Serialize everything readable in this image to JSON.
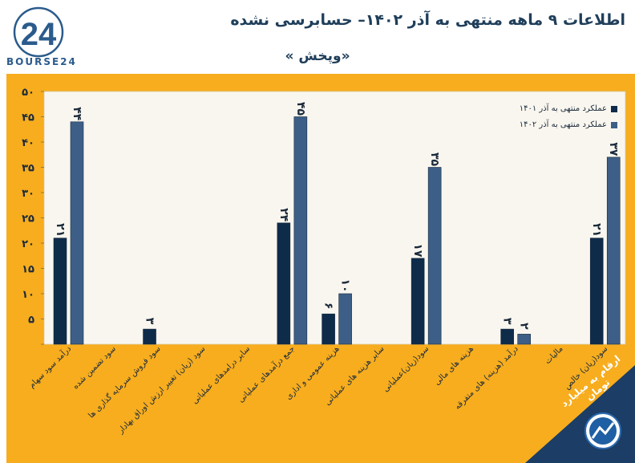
{
  "brand": {
    "logo_text": "BOURSE24",
    "logo_mark": "24"
  },
  "header": {
    "title": "اطلاعات ۹  ماهه منتهی به آذر ۱۴۰۲– حسابرسی نشده",
    "subtitle": "«وپخش »"
  },
  "footer": {
    "unit_label": "ارقام به میلیارد تومان"
  },
  "colors": {
    "panel": "#f7ad1e",
    "plot": "#f9f6ef",
    "series_1401": "#0f2b4a",
    "series_1402": "#3d5f87",
    "text": "#1b2a3a",
    "corner": "#1b3d66"
  },
  "chart_data": {
    "type": "bar",
    "title": "اطلاعات ۹ ماهه منتهی به آذر ۱۴۰۲– حسابرسی نشده",
    "categories": [
      "درآمد سود سهام",
      "سود تضمین شده",
      "سود فروش سرمایه گذاری ها",
      "سود (زیان) تغییر ارزش اوراق بهادار",
      "سایر درامدهای عملیاتی",
      "جمع درآمدهای عملیاتی",
      "هزینه عمومی و اداری",
      "سایر هزینه های عملیاتی",
      "سود(زیان)عملیاتی",
      "هزینه های مالی",
      "درآمد (هزینه) های متفرقه",
      "مالیات",
      "سود(زیان) خالص"
    ],
    "series": [
      {
        "name": "عملکرد منتهی به آذر ۱۴۰۱",
        "values": [
          21,
          null,
          3,
          null,
          null,
          24,
          6,
          null,
          17,
          null,
          3,
          null,
          21
        ],
        "labels": [
          "۲۱",
          "",
          "۳",
          "",
          "",
          "۲۴",
          "۶",
          "",
          "۱۷",
          "",
          "۳",
          "",
          "۲۱"
        ]
      },
      {
        "name": "عملکرد منتهی به آذر ۱۴۰۲",
        "values": [
          44,
          null,
          null,
          null,
          null,
          45,
          10,
          null,
          35,
          null,
          2,
          null,
          37
        ],
        "labels": [
          "۴۴",
          "",
          "",
          "",
          "",
          "۴۵",
          "۱۰",
          "",
          "۳۵",
          "",
          "۲",
          "",
          "۳۷"
        ]
      }
    ],
    "ylim": [
      0,
      50
    ],
    "yticks": [
      0,
      5,
      10,
      15,
      20,
      25,
      30,
      35,
      40,
      45,
      50
    ],
    "ytick_labels": [
      "",
      "۵",
      "۱۰",
      "۱۵",
      "۲۰",
      "۲۵",
      "۳۰",
      "۳۵",
      "۴۰",
      "۴۵",
      "۵۰"
    ],
    "legend_position": "top-right",
    "xlabel": "",
    "ylabel": ""
  }
}
